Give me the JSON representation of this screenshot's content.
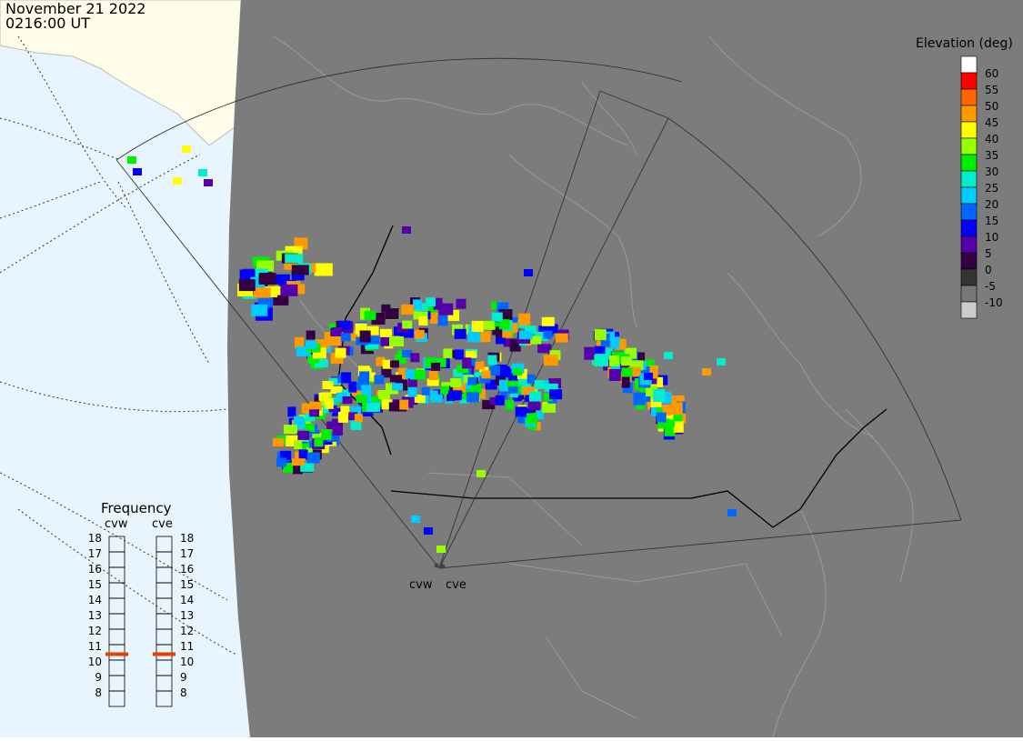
{
  "header": {
    "date": "November 21 2022",
    "time": "0216:00 UT"
  },
  "elevation_legend": {
    "title": "Elevation (deg)",
    "levels": [
      {
        "label": "60",
        "color": "#ffffff"
      },
      {
        "label": "55",
        "color": "#ff0000"
      },
      {
        "label": "50",
        "color": "#ff6600"
      },
      {
        "label": "45",
        "color": "#ff9900"
      },
      {
        "label": "40",
        "color": "#ffff00"
      },
      {
        "label": "35",
        "color": "#99ff00"
      },
      {
        "label": "30",
        "color": "#00ee00"
      },
      {
        "label": "25",
        "color": "#00eecc"
      },
      {
        "label": "20",
        "color": "#00ccff"
      },
      {
        "label": "15",
        "color": "#0066ff"
      },
      {
        "label": "10",
        "color": "#0000ff"
      },
      {
        "label": "5",
        "color": "#5500aa"
      },
      {
        "label": "0",
        "color": "#330044"
      },
      {
        "label": "-5",
        "color": "#333333"
      },
      {
        "label": "-10",
        "color": "#777777"
      },
      {
        "label": "",
        "color": "#cccccc"
      }
    ]
  },
  "frequency_panel": {
    "title": "Frequency",
    "radars": [
      {
        "name": "cvw",
        "frequency_mhz": 11
      },
      {
        "name": "cve",
        "frequency_mhz": 11
      }
    ],
    "scale": [
      "18",
      "17",
      "16",
      "15",
      "14",
      "13",
      "12",
      "11",
      "10",
      "9",
      "8"
    ]
  },
  "sites": [
    {
      "label": "cvw"
    },
    {
      "label": "cve"
    }
  ],
  "colors": {
    "ocean": "#e8f5ff",
    "land_sunlit": "#fdfde9",
    "night_shade": "#7c7c7c",
    "grid": "#333333",
    "indicator": "#e84000"
  }
}
